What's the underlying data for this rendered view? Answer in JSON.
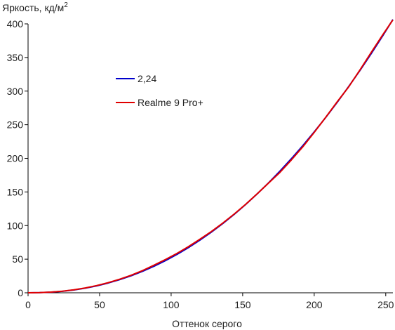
{
  "chart_data": {
    "type": "line",
    "ylabel": "Яркость, кд/м",
    "ylabel_superscript": "2",
    "xlabel": "Оттенок серого",
    "xlim": [
      0,
      255
    ],
    "ylim": [
      0,
      400
    ],
    "x_ticks": [
      0,
      50,
      100,
      150,
      200,
      250
    ],
    "y_ticks": [
      0,
      50,
      100,
      150,
      200,
      250,
      300,
      350,
      400
    ],
    "grid": false,
    "legend_position": "upper-left",
    "series": [
      {
        "name": "2,24",
        "color": "#0000cc",
        "x": [
          0,
          8,
          16,
          24,
          32,
          40,
          48,
          56,
          64,
          72,
          80,
          88,
          96,
          104,
          112,
          120,
          128,
          136,
          144,
          152,
          160,
          168,
          176,
          184,
          192,
          200,
          208,
          216,
          224,
          232,
          240,
          248,
          255
        ],
        "y": [
          0,
          0.2,
          0.9,
          2.2,
          4.2,
          6.9,
          10.3,
          14.5,
          19.5,
          25.3,
          32.0,
          39.5,
          47.8,
          57.0,
          67.1,
          78.1,
          90.0,
          102.8,
          116.5,
          131.2,
          146.8,
          163.3,
          180.9,
          199.4,
          218.8,
          239.3,
          260.7,
          283.1,
          306.5,
          330.8,
          356.2,
          382.6,
          406.5
        ]
      },
      {
        "name": "Realme 9 Pro+",
        "color": "#e00000",
        "x": [
          0,
          8,
          16,
          24,
          32,
          40,
          48,
          56,
          64,
          72,
          80,
          88,
          96,
          104,
          112,
          120,
          128,
          136,
          144,
          152,
          160,
          168,
          176,
          184,
          192,
          200,
          208,
          216,
          224,
          232,
          240,
          248,
          255
        ],
        "y": [
          0,
          0.3,
          1.0,
          2.4,
          4.5,
          7.2,
          10.8,
          15.0,
          20.2,
          26.0,
          33.0,
          41.0,
          49.5,
          58.5,
          68.5,
          79.5,
          91.0,
          103.5,
          117.0,
          131.5,
          147.0,
          163.0,
          179.0,
          197.5,
          217.0,
          238.5,
          261.0,
          284.0,
          306.0,
          331.5,
          358.0,
          384.0,
          406.0
        ]
      }
    ]
  }
}
